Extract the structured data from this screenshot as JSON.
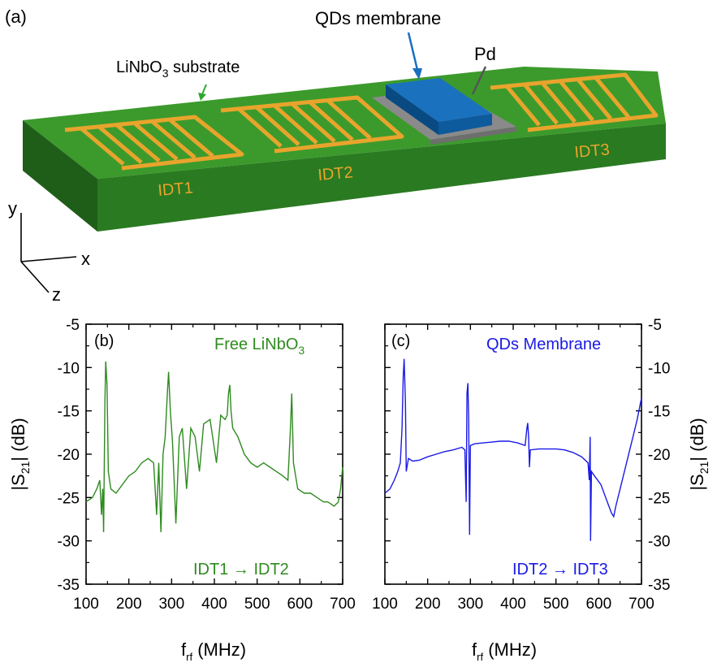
{
  "device": {
    "panel_label": "(a)",
    "membrane_label": "QDs membrane",
    "pd_label": "Pd",
    "substrate_label_main": "LiNbO",
    "substrate_label_sub": "3",
    "substrate_label_tail": " substrate",
    "idt1": "IDT1",
    "idt2": "IDT2",
    "idt3": "IDT3",
    "axis_x": "x",
    "axis_y": "y",
    "axis_z": "z",
    "colors": {
      "substrate_top": "#3c9a2c",
      "substrate_front": "#2a7a21",
      "substrate_side": "#1f5e19",
      "idt": "#e8a42c",
      "membrane": "#0d5a9c",
      "pd": "#8a8a8a"
    }
  },
  "chart_data": [
    {
      "type": "line",
      "panel_label": "(b)",
      "title_main": "Free LiNbO",
      "title_sub": "3",
      "annotation": "IDT1 → IDT2",
      "xlabel_main": "f",
      "xlabel_sub": "rf",
      "xlabel_tail": " (MHz)",
      "ylabel": "|S21| (dB)",
      "xlim": [
        100,
        700
      ],
      "ylim": [
        -35,
        -5
      ],
      "xticks": [
        "100",
        "200",
        "300",
        "400",
        "500",
        "600",
        "700"
      ],
      "yticks": [
        "-5",
        "-10",
        "-15",
        "-20",
        "-25",
        "-30",
        "-35"
      ],
      "color": "#2e8b1f",
      "series": [
        {
          "values": [
            [
              100,
              -25.5
            ],
            [
              115,
              -25.0
            ],
            [
              125,
              -24.0
            ],
            [
              132,
              -23.0
            ],
            [
              136,
              -27.0
            ],
            [
              139,
              -24.0
            ],
            [
              141,
              -29.0
            ],
            [
              144,
              -14.0
            ],
            [
              146,
              -9.3
            ],
            [
              149,
              -12.0
            ],
            [
              152,
              -22.0
            ],
            [
              158,
              -24.0
            ],
            [
              170,
              -24.5
            ],
            [
              185,
              -23.5
            ],
            [
              200,
              -22.5
            ],
            [
              215,
              -22.0
            ],
            [
              230,
              -21.0
            ],
            [
              245,
              -20.5
            ],
            [
              258,
              -21.0
            ],
            [
              265,
              -27.0
            ],
            [
              270,
              -21.0
            ],
            [
              275,
              -29.0
            ],
            [
              280,
              -20.0
            ],
            [
              285,
              -18.0
            ],
            [
              290,
              -13.0
            ],
            [
              293,
              -10.5
            ],
            [
              297,
              -15.0
            ],
            [
              302,
              -18.5
            ],
            [
              310,
              -28.0
            ],
            [
              318,
              -18.0
            ],
            [
              325,
              -17.0
            ],
            [
              335,
              -24.0
            ],
            [
              345,
              -17.0
            ],
            [
              355,
              -18.0
            ],
            [
              365,
              -22.0
            ],
            [
              375,
              -16.5
            ],
            [
              390,
              -16.0
            ],
            [
              405,
              -21.0
            ],
            [
              415,
              -15.5
            ],
            [
              425,
              -16.0
            ],
            [
              430,
              -15.5
            ],
            [
              433,
              -13.0
            ],
            [
              436,
              -12.0
            ],
            [
              439,
              -15.0
            ],
            [
              443,
              -17.0
            ],
            [
              455,
              -18.0
            ],
            [
              470,
              -20.0
            ],
            [
              485,
              -21.0
            ],
            [
              500,
              -21.5
            ],
            [
              515,
              -21.0
            ],
            [
              530,
              -21.5
            ],
            [
              545,
              -22.0
            ],
            [
              560,
              -22.5
            ],
            [
              572,
              -23.0
            ],
            [
              578,
              -17.0
            ],
            [
              581,
              -13.0
            ],
            [
              585,
              -21.0
            ],
            [
              595,
              -24.0
            ],
            [
              610,
              -24.5
            ],
            [
              625,
              -24.5
            ],
            [
              640,
              -25.0
            ],
            [
              655,
              -25.5
            ],
            [
              665,
              -25.5
            ],
            [
              680,
              -26.0
            ],
            [
              690,
              -25.5
            ],
            [
              695,
              -24.0
            ],
            [
              700,
              -21.5
            ]
          ]
        }
      ]
    },
    {
      "type": "line",
      "panel_label": "(c)",
      "title_main": "QDs Membrane",
      "annotation": "IDT2 → IDT3",
      "xlabel_main": "f",
      "xlabel_sub": "rf",
      "xlabel_tail": " (MHz)",
      "ylabel": "|S21| (dB)",
      "xlim": [
        100,
        700
      ],
      "ylim": [
        -35,
        -5
      ],
      "xticks": [
        "100",
        "200",
        "300",
        "400",
        "500",
        "600",
        "700"
      ],
      "yticks": [
        "-5",
        "-10",
        "-15",
        "-20",
        "-25",
        "-30",
        "-35"
      ],
      "color": "#1a1ae6",
      "series": [
        {
          "values": [
            [
              100,
              -24.5
            ],
            [
              112,
              -24.0
            ],
            [
              122,
              -23.0
            ],
            [
              130,
              -22.0
            ],
            [
              136,
              -21.0
            ],
            [
              140,
              -17.0
            ],
            [
              143,
              -11.0
            ],
            [
              145,
              -9.0
            ],
            [
              148,
              -14.0
            ],
            [
              150,
              -22.0
            ],
            [
              155,
              -20.5
            ],
            [
              165,
              -20.8
            ],
            [
              180,
              -20.7
            ],
            [
              200,
              -20.3
            ],
            [
              220,
              -20.0
            ],
            [
              240,
              -19.7
            ],
            [
              260,
              -19.5
            ],
            [
              280,
              -19.2
            ],
            [
              287,
              -19.5
            ],
            [
              290,
              -25.5
            ],
            [
              292,
              -13.0
            ],
            [
              294,
              -11.8
            ],
            [
              296,
              -16.0
            ],
            [
              298,
              -29.3
            ],
            [
              300,
              -19.0
            ],
            [
              310,
              -18.8
            ],
            [
              330,
              -18.7
            ],
            [
              350,
              -18.6
            ],
            [
              370,
              -18.5
            ],
            [
              390,
              -18.5
            ],
            [
              410,
              -18.7
            ],
            [
              428,
              -19.0
            ],
            [
              432,
              -17.0
            ],
            [
              434,
              -16.4
            ],
            [
              436,
              -18.0
            ],
            [
              438,
              -21.5
            ],
            [
              440,
              -19.5
            ],
            [
              460,
              -19.4
            ],
            [
              480,
              -19.4
            ],
            [
              500,
              -19.4
            ],
            [
              520,
              -19.5
            ],
            [
              540,
              -19.8
            ],
            [
              560,
              -20.3
            ],
            [
              575,
              -21.0
            ],
            [
              578,
              -23.0
            ],
            [
              580,
              -18.0
            ],
            [
              581,
              -30.0
            ],
            [
              583,
              -22.0
            ],
            [
              590,
              -22.5
            ],
            [
              605,
              -23.5
            ],
            [
              620,
              -25.5
            ],
            [
              630,
              -26.8
            ],
            [
              635,
              -27.2
            ],
            [
              640,
              -26.0
            ],
            [
              650,
              -24.0
            ],
            [
              665,
              -21.0
            ],
            [
              680,
              -18.0
            ],
            [
              690,
              -16.0
            ],
            [
              700,
              -13.5
            ]
          ]
        }
      ]
    }
  ]
}
